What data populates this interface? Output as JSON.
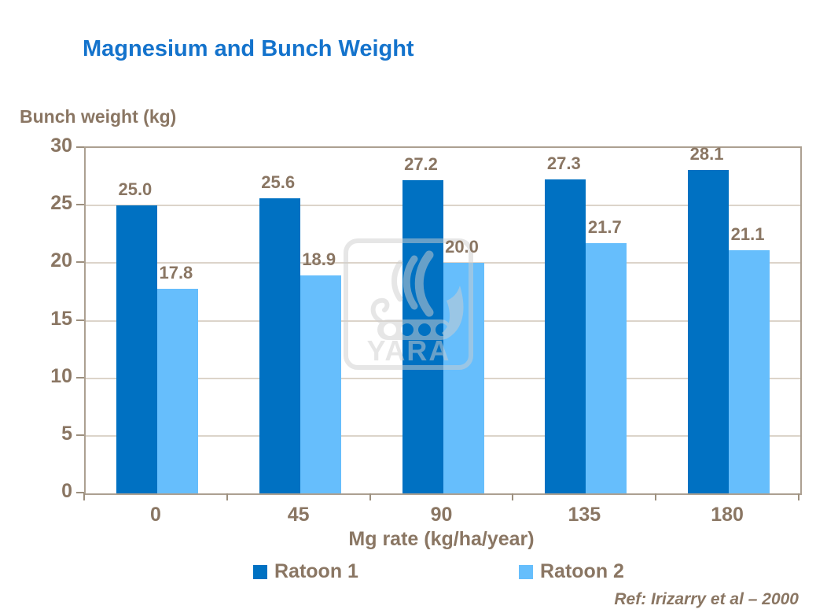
{
  "title": "Magnesium and Bunch Weight",
  "ref_note": "Ref: Irizarry et al – 2000",
  "watermark": {
    "logo_name": "yara-viking-ship-logo",
    "text": "YARA"
  },
  "colors": {
    "title_blue": "#1473CC",
    "text_brown": "#8A7663",
    "series1_blue": "#0071C2",
    "series2_light_blue": "#66BEFC",
    "gridline": "#DCD4CA",
    "plot_border": "#ACA091",
    "watermark_gray": "#CFCFCF"
  },
  "chart_data": {
    "type": "bar",
    "title": "Magnesium and Bunch Weight",
    "ylabel": "Bunch weight (kg)",
    "xlabel": "Mg rate (kg/ha/year)",
    "categories": [
      "0",
      "45",
      "90",
      "135",
      "180"
    ],
    "series": [
      {
        "name": "Ratoon 1",
        "color": "#0071C2",
        "values": [
          25.0,
          25.6,
          27.2,
          27.3,
          28.1
        ]
      },
      {
        "name": "Ratoon 2",
        "color": "#66BEFC",
        "values": [
          17.8,
          18.9,
          20.0,
          21.7,
          21.1
        ]
      }
    ],
    "ylim": [
      0,
      30
    ],
    "yticks": [
      0,
      5,
      10,
      15,
      20,
      25,
      30
    ],
    "grid": true,
    "data_labels_decimals": 1,
    "legend_position": "bottom"
  }
}
